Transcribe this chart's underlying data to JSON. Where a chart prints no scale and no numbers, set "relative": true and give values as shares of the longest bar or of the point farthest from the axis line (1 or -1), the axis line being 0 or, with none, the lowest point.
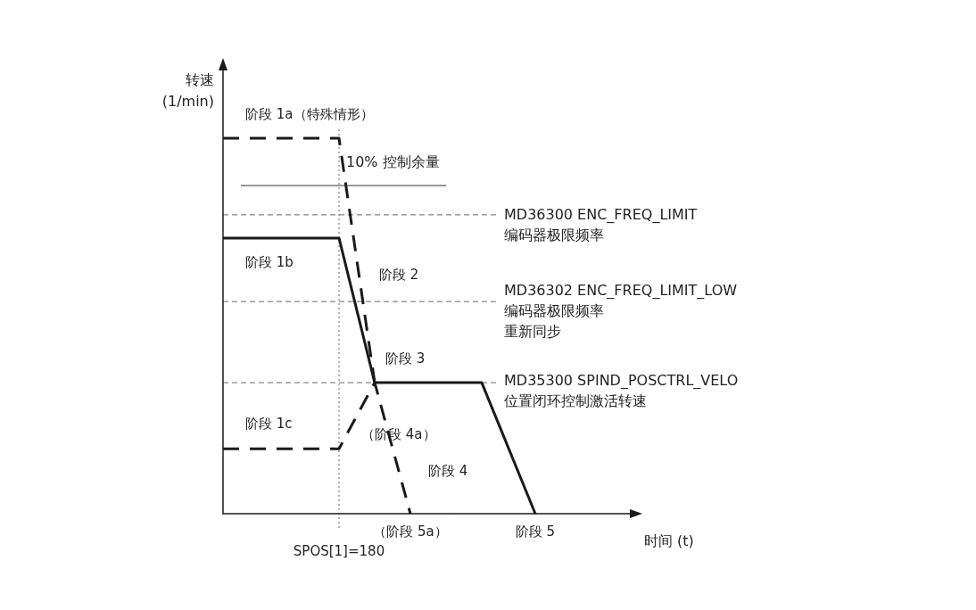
{
  "chart_data": {
    "type": "line",
    "relative": true,
    "ylabel": "转速\n(1/min)",
    "xlabel": "时间 (t)",
    "categories": [
      null,
      null,
      null,
      null,
      null,
      null,
      null,
      null,
      null,
      null,
      null,
      null,
      null,
      "SPOS[1]=180",
      null,
      null,
      null,
      null,
      null,
      null,
      null,
      "（阶段 5a）",
      null,
      null,
      null,
      null,
      null,
      null,
      null,
      null,
      null,
      null,
      null,
      null,
      null,
      "阶段 5",
      null,
      null,
      null,
      null,
      null,
      null,
      null,
      null,
      null,
      null,
      null
    ],
    "series": [
      {
        "color": "#1a1a1a",
        "line_style": "dashed",
        "values": [
          1,
          null,
          null,
          null,
          null,
          null,
          null,
          null,
          null,
          null,
          null,
          null,
          null,
          1,
          null,
          null,
          null,
          0.349,
          null,
          null,
          null,
          null,
          null,
          null,
          null,
          null,
          null,
          null,
          null,
          null,
          null,
          null,
          null,
          null,
          null,
          null,
          null,
          null,
          null,
          null,
          null,
          null,
          null,
          null,
          null,
          null,
          null
        ]
      },
      {
        "color": "#1a1a1a",
        "line_style": "solid",
        "values": [
          0.734,
          null,
          null,
          null,
          null,
          null,
          null,
          null,
          null,
          null,
          null,
          null,
          null,
          0.734,
          null,
          null,
          null,
          0.349,
          null,
          null,
          null,
          null,
          null,
          null,
          null,
          null,
          null,
          null,
          null,
          0.349,
          null,
          null,
          null,
          null,
          null,
          0,
          null,
          null,
          null,
          null,
          null,
          null,
          null,
          null,
          null,
          null,
          null
        ]
      },
      {
        "color": "#1a1a1a",
        "line_style": "dashed",
        "values": [
          0.173,
          null,
          null,
          null,
          null,
          null,
          null,
          null,
          null,
          null,
          null,
          null,
          null,
          0.173,
          null,
          null,
          null,
          0.349,
          null,
          null,
          null,
          0,
          null,
          null,
          null,
          null,
          null,
          null,
          null,
          null,
          null,
          null,
          null,
          null,
          null,
          null,
          null,
          null,
          null,
          null,
          null,
          null,
          null,
          null,
          null,
          null,
          null
        ]
      }
    ],
    "ref_lines": [
      {
        "axis": "y",
        "value": 0.874,
        "label": "10% 控制余量",
        "line_style": "solid",
        "color": "#333333"
      },
      {
        "axis": "y",
        "value": 0.796,
        "label": "MD36300 ENC_FREQ_LIMIT\n编码器极限频率",
        "line_style": "dashed",
        "color": "#666666"
      },
      {
        "axis": "y",
        "value": 0.565,
        "label": "MD36302 ENC_FREQ_LIMIT_LOW\n编码器极限频率重新同步",
        "line_style": "dashed",
        "color": "#666666"
      },
      {
        "axis": "y",
        "value": 0.349,
        "label": "MD35300 SPIND_POSCTRL_VELO\n位置闭环控制激活转速",
        "line_style": "dashed",
        "color": "#666666"
      },
      {
        "axis": "x",
        "value": "SPOS[1]=180",
        "line_style": "dotted",
        "color": "#666666"
      }
    ],
    "annotations": [
      "阶段 1a（特殊情形）",
      "阶段 1b",
      "阶段 2",
      "阶段 3",
      "阶段 1c",
      "（阶段 4a）",
      "阶段 4"
    ],
    "marker": "none",
    "grid": false
  }
}
